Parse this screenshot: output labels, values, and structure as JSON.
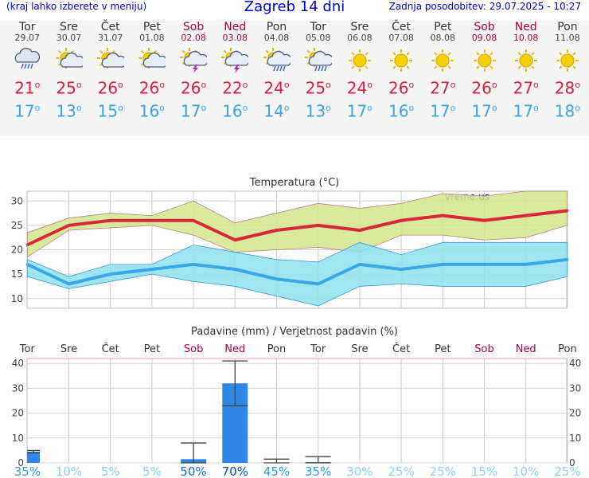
{
  "header": {
    "hint": "(kraj lahko izberete v meniju)",
    "title": "Zagreb 14 dni",
    "updated": "Zadnja posodobitev: 29.07.2025 - 10:27"
  },
  "days": [
    {
      "name": "Tor",
      "date": "29.07",
      "weekend": false,
      "icon": "rain-cloud-icon",
      "tmax": "21",
      "tmin": "17"
    },
    {
      "name": "Sre",
      "date": "30.07",
      "weekend": false,
      "icon": "partly-sunny-icon",
      "tmax": "25",
      "tmin": "13"
    },
    {
      "name": "Čet",
      "date": "31.07",
      "weekend": false,
      "icon": "partly-sunny-icon",
      "tmax": "26",
      "tmin": "15"
    },
    {
      "name": "Pet",
      "date": "01.08",
      "weekend": false,
      "icon": "partly-sunny-icon",
      "tmax": "26",
      "tmin": "16"
    },
    {
      "name": "Sob",
      "date": "02.08",
      "weekend": true,
      "icon": "thunderstorm-sun-icon",
      "tmax": "26",
      "tmin": "17"
    },
    {
      "name": "Ned",
      "date": "03.08",
      "weekend": true,
      "icon": "thunderstorm-sun-icon",
      "tmax": "22",
      "tmin": "16"
    },
    {
      "name": "Pon",
      "date": "04.08",
      "weekend": false,
      "icon": "sun-rain-cloud-icon",
      "tmax": "24",
      "tmin": "14"
    },
    {
      "name": "Tor",
      "date": "05.08",
      "weekend": false,
      "icon": "sun-rain-cloud-icon",
      "tmax": "25",
      "tmin": "13"
    },
    {
      "name": "Sre",
      "date": "06.08",
      "weekend": false,
      "icon": "sun-icon",
      "tmax": "24",
      "tmin": "17"
    },
    {
      "name": "Čet",
      "date": "07.08",
      "weekend": false,
      "icon": "sun-icon",
      "tmax": "26",
      "tmin": "16"
    },
    {
      "name": "Pet",
      "date": "08.08",
      "weekend": false,
      "icon": "sun-icon",
      "tmax": "27",
      "tmin": "17"
    },
    {
      "name": "Sob",
      "date": "09.08",
      "weekend": true,
      "icon": "sun-icon",
      "tmax": "26",
      "tmin": "17"
    },
    {
      "name": "Ned",
      "date": "10.08",
      "weekend": true,
      "icon": "sun-icon",
      "tmax": "27",
      "tmin": "17"
    },
    {
      "name": "Pon",
      "date": "11.08",
      "weekend": false,
      "icon": "sun-icon",
      "tmax": "28",
      "tmin": "18"
    }
  ],
  "colors": {
    "title_blue": "#0000cc",
    "max_line": "#d8283c",
    "max_band": "#d2e68c",
    "min_line": "#3ba8e8",
    "min_band": "#8ee0f0",
    "bar": "#2e86e8",
    "weekend": "#aa0044"
  },
  "chart_data": [
    {
      "type": "line",
      "title": "Temperatura (°C)",
      "watermark": "vreme.us",
      "ylim": [
        8,
        32
      ],
      "yticks": [
        "10",
        "15",
        "20",
        "25",
        "30"
      ],
      "series": [
        {
          "values": [
            21,
            25,
            26,
            26,
            26,
            22,
            24,
            25,
            24,
            26,
            27,
            26,
            27,
            28
          ],
          "band_upper": [
            23.5,
            26.5,
            27.5,
            27,
            30,
            25.5,
            27.5,
            29.5,
            28.5,
            29.5,
            31.5,
            31,
            32,
            32
          ],
          "band_lower": [
            18.5,
            24,
            24.5,
            25,
            23,
            19.5,
            20,
            20.5,
            19.5,
            23,
            23,
            22,
            22.5,
            25
          ]
        },
        {
          "values": [
            17,
            13,
            15,
            16,
            17,
            16,
            14,
            13,
            17,
            16,
            17,
            17,
            17,
            18
          ],
          "band_upper": [
            18,
            14.5,
            17,
            17,
            21,
            19.5,
            18,
            17.5,
            21.5,
            19,
            21.5,
            21.5,
            21.5,
            21.5
          ],
          "band_lower": [
            14.5,
            12,
            13.5,
            15,
            13.5,
            12.5,
            10.5,
            8.5,
            12.5,
            13,
            12.5,
            12.5,
            12.5,
            14.5
          ]
        }
      ]
    },
    {
      "type": "bar",
      "title": "Padavine (mm) / Verjetnost padavin (%)",
      "categories": [
        "Tor",
        "Sre",
        "Čet",
        "Pet",
        "Sob",
        "Ned",
        "Pon",
        "Tor",
        "Sre",
        "Čet",
        "Pet",
        "Sob",
        "Ned",
        "Pon"
      ],
      "weekend": [
        false,
        false,
        false,
        false,
        true,
        true,
        false,
        false,
        false,
        false,
        false,
        true,
        true,
        false
      ],
      "values": [
        4.5,
        0,
        0,
        0,
        1.5,
        32,
        0,
        0.3,
        0,
        0,
        0,
        0,
        0,
        0
      ],
      "err_low": [
        4,
        0,
        0,
        0,
        0,
        23,
        0,
        0,
        0,
        0,
        0,
        0,
        0,
        0
      ],
      "err_high": [
        5,
        0,
        0,
        0,
        8,
        41,
        1.5,
        2.5,
        0,
        0,
        0,
        0,
        0,
        0
      ],
      "show_err": [
        true,
        false,
        false,
        false,
        true,
        true,
        true,
        true,
        false,
        false,
        false,
        false,
        false,
        false
      ],
      "ylim": [
        0,
        42
      ],
      "yticks": [
        "0",
        "10",
        "20",
        "30",
        "40"
      ],
      "probabilities": [
        "35%",
        "10%",
        "5%",
        "5%",
        "50%",
        "70%",
        "45%",
        "35%",
        "30%",
        "25%",
        "25%",
        "15%",
        "10%",
        "25%"
      ],
      "prob_levels": [
        1,
        0,
        0,
        0,
        2,
        3,
        1,
        1,
        0,
        0,
        0,
        0,
        0,
        0
      ]
    }
  ]
}
